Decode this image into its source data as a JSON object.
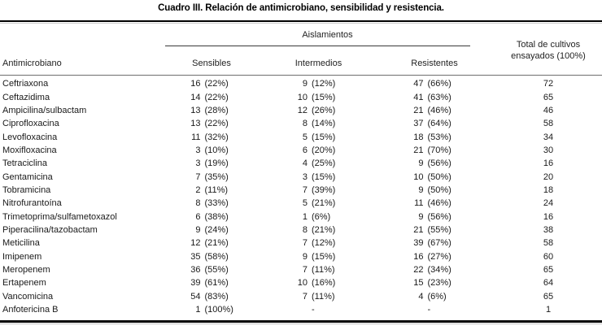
{
  "title": "Cuadro III. Relación de antimicrobiano, sensibilidad y resistencia.",
  "table": {
    "group_header": "Aislamientos",
    "col_antimicrobiano": "Antimicrobiano",
    "col_sensibles": "Sensibles",
    "col_intermedios": "Intermedios",
    "col_resistentes": "Resistentes",
    "col_total_line1": "Total de cultivos",
    "col_total_line2": "ensayados (100%)",
    "rows": [
      {
        "name": "Ceftriaxona",
        "s_n": "16",
        "s_p": "(22%)",
        "i_n": "9",
        "i_p": "(12%)",
        "r_n": "47",
        "r_p": "(66%)",
        "total": "72"
      },
      {
        "name": "Ceftazidima",
        "s_n": "14",
        "s_p": "(22%)",
        "i_n": "10",
        "i_p": "(15%)",
        "r_n": "41",
        "r_p": "(63%)",
        "total": "65"
      },
      {
        "name": "Ampicilina/sulbactam",
        "s_n": "13",
        "s_p": "(28%)",
        "i_n": "12",
        "i_p": "(26%)",
        "r_n": "21",
        "r_p": "(46%)",
        "total": "46"
      },
      {
        "name": "Ciprofloxacina",
        "s_n": "13",
        "s_p": "(22%)",
        "i_n": "8",
        "i_p": "(14%)",
        "r_n": "37",
        "r_p": "(64%)",
        "total": "58"
      },
      {
        "name": "Levofloxacina",
        "s_n": "11",
        "s_p": "(32%)",
        "i_n": "5",
        "i_p": "(15%)",
        "r_n": "18",
        "r_p": "(53%)",
        "total": "34"
      },
      {
        "name": "Moxifloxacina",
        "s_n": "3",
        "s_p": "(10%)",
        "i_n": "6",
        "i_p": "(20%)",
        "r_n": "21",
        "r_p": "(70%)",
        "total": "30"
      },
      {
        "name": "Tetraciclina",
        "s_n": "3",
        "s_p": "(19%)",
        "i_n": "4",
        "i_p": "(25%)",
        "r_n": "9",
        "r_p": "(56%)",
        "total": "16"
      },
      {
        "name": "Gentamicina",
        "s_n": "7",
        "s_p": "(35%)",
        "i_n": "3",
        "i_p": "(15%)",
        "r_n": "10",
        "r_p": "(50%)",
        "total": "20"
      },
      {
        "name": "Tobramicina",
        "s_n": "2",
        "s_p": "(11%)",
        "i_n": "7",
        "i_p": "(39%)",
        "r_n": "9",
        "r_p": "(50%)",
        "total": "18"
      },
      {
        "name": "Nitrofurantoína",
        "s_n": "8",
        "s_p": "(33%)",
        "i_n": "5",
        "i_p": "(21%)",
        "r_n": "11",
        "r_p": "(46%)",
        "total": "24"
      },
      {
        "name": "Trimetoprima/sulfametoxazol",
        "s_n": "6",
        "s_p": "(38%)",
        "i_n": "1",
        "i_p": "(6%)",
        "r_n": "9",
        "r_p": "(56%)",
        "total": "16"
      },
      {
        "name": "Piperacilina/tazobactam",
        "s_n": "9",
        "s_p": "(24%)",
        "i_n": "8",
        "i_p": "(21%)",
        "r_n": "21",
        "r_p": "(55%)",
        "total": "38"
      },
      {
        "name": "Meticilina",
        "s_n": "12",
        "s_p": "(21%)",
        "i_n": "7",
        "i_p": "(12%)",
        "r_n": "39",
        "r_p": "(67%)",
        "total": "58"
      },
      {
        "name": "Imipenem",
        "s_n": "35",
        "s_p": "(58%)",
        "i_n": "9",
        "i_p": "(15%)",
        "r_n": "16",
        "r_p": "(27%)",
        "total": "60"
      },
      {
        "name": "Meropenem",
        "s_n": "36",
        "s_p": "(55%)",
        "i_n": "7",
        "i_p": "(11%)",
        "r_n": "22",
        "r_p": "(34%)",
        "total": "65"
      },
      {
        "name": "Ertapenem",
        "s_n": "39",
        "s_p": "(61%)",
        "i_n": "10",
        "i_p": "(16%)",
        "r_n": "15",
        "r_p": "(23%)",
        "total": "64"
      },
      {
        "name": "Vancomicina",
        "s_n": "54",
        "s_p": "(83%)",
        "i_n": "7",
        "i_p": "(11%)",
        "r_n": "4",
        "r_p": "(6%)",
        "total": "65"
      },
      {
        "name": "Anfotericina B",
        "s_n": "1",
        "s_p": "(100%)",
        "i_n": "",
        "i_p": "-",
        "r_n": "",
        "r_p": "-",
        "total": "1"
      }
    ]
  }
}
